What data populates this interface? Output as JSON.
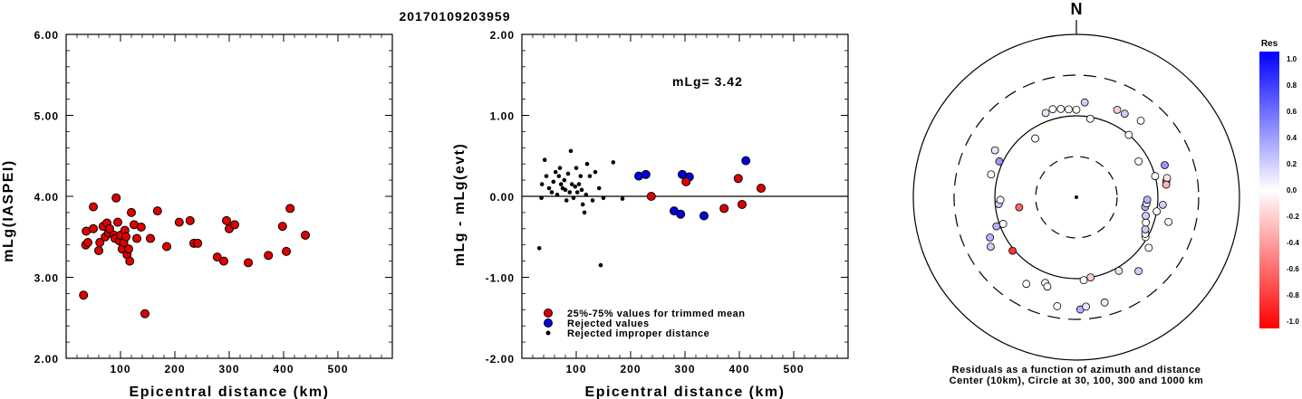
{
  "title": "20170109203959",
  "chart_data": [
    {
      "type": "scatter",
      "name": "magnitude-vs-distance",
      "xlabel": "Epicentral distance (km)",
      "ylabel": "mLg(IASPEI)",
      "xlim": [
        0,
        600
      ],
      "ylim": [
        2.0,
        6.0
      ],
      "xticks": [
        "100",
        "200",
        "300",
        "400",
        "500"
      ],
      "yticks": [
        "2.00",
        "3.00",
        "4.00",
        "5.00",
        "6.00"
      ],
      "marker_color": "#e00000",
      "points": [
        [
          32,
          2.78
        ],
        [
          36,
          3.4
        ],
        [
          37,
          3.57
        ],
        [
          40,
          3.43
        ],
        [
          50,
          3.87
        ],
        [
          50,
          3.6
        ],
        [
          60,
          3.33
        ],
        [
          62,
          3.43
        ],
        [
          68,
          3.63
        ],
        [
          72,
          3.5
        ],
        [
          75,
          3.67
        ],
        [
          78,
          3.55
        ],
        [
          80,
          3.6
        ],
        [
          88,
          3.52
        ],
        [
          90,
          3.48
        ],
        [
          92,
          3.98
        ],
        [
          95,
          3.68
        ],
        [
          98,
          3.45
        ],
        [
          100,
          3.52
        ],
        [
          103,
          3.35
        ],
        [
          106,
          3.43
        ],
        [
          108,
          3.58
        ],
        [
          110,
          3.5
        ],
        [
          112,
          3.28
        ],
        [
          115,
          3.35
        ],
        [
          117,
          3.2
        ],
        [
          120,
          3.8
        ],
        [
          125,
          3.65
        ],
        [
          130,
          3.48
        ],
        [
          138,
          3.62
        ],
        [
          145,
          2.55
        ],
        [
          155,
          3.48
        ],
        [
          168,
          3.82
        ],
        [
          185,
          3.38
        ],
        [
          208,
          3.68
        ],
        [
          228,
          3.7
        ],
        [
          235,
          3.42
        ],
        [
          242,
          3.42
        ],
        [
          278,
          3.25
        ],
        [
          290,
          3.2
        ],
        [
          295,
          3.7
        ],
        [
          300,
          3.6
        ],
        [
          310,
          3.65
        ],
        [
          335,
          3.18
        ],
        [
          372,
          3.27
        ],
        [
          398,
          3.63
        ],
        [
          405,
          3.32
        ],
        [
          412,
          3.85
        ],
        [
          440,
          3.52
        ]
      ]
    },
    {
      "type": "scatter",
      "name": "residual-vs-distance",
      "xlabel": "Epicentral distance (km)",
      "ylabel": "mLg - mLg(evt)",
      "xlim": [
        0,
        600
      ],
      "ylim": [
        -2.0,
        2.0
      ],
      "xticks": [
        "100",
        "200",
        "300",
        "400",
        "500"
      ],
      "yticks": [
        "-2.00",
        "-1.00",
        "0.00",
        "1.00",
        "2.00"
      ],
      "annotation": "mLg= 3.42",
      "legend": [
        {
          "label": "25%-75% values for trimmed mean",
          "color": "#e00000"
        },
        {
          "label": "Rejected values",
          "color": "#0000e0"
        },
        {
          "label": "Rejected improper distance",
          "color": "#000000"
        }
      ],
      "used_points": [
        [
          238,
          0.0
        ],
        [
          302,
          0.18
        ],
        [
          372,
          -0.15
        ],
        [
          398,
          0.22
        ],
        [
          405,
          -0.1
        ],
        [
          440,
          0.1
        ]
      ],
      "rejected_points": [
        [
          215,
          0.25
        ],
        [
          228,
          0.27
        ],
        [
          280,
          -0.18
        ],
        [
          292,
          -0.22
        ],
        [
          295,
          0.27
        ],
        [
          308,
          0.24
        ],
        [
          335,
          -0.24
        ],
        [
          412,
          0.44
        ]
      ],
      "improper_points": [
        [
          32,
          -0.64
        ],
        [
          36,
          -0.02
        ],
        [
          37,
          0.15
        ],
        [
          42,
          0.45
        ],
        [
          45,
          0.25
        ],
        [
          50,
          0.1
        ],
        [
          55,
          0.05
        ],
        [
          58,
          0.18
        ],
        [
          62,
          0.3
        ],
        [
          65,
          0.02
        ],
        [
          68,
          0.25
        ],
        [
          70,
          0.35
        ],
        [
          72,
          0.15
        ],
        [
          75,
          0.1
        ],
        [
          78,
          0.2
        ],
        [
          80,
          0.08
        ],
        [
          82,
          -0.05
        ],
        [
          85,
          0.28
        ],
        [
          88,
          0.05
        ],
        [
          90,
          0.56
        ],
        [
          92,
          0.15
        ],
        [
          95,
          -0.02
        ],
        [
          98,
          0.12
        ],
        [
          100,
          0.35
        ],
        [
          102,
          0.05
        ],
        [
          105,
          0.15
        ],
        [
          108,
          0.25
        ],
        [
          110,
          0.08
        ],
        [
          112,
          -0.1
        ],
        [
          115,
          -0.2
        ],
        [
          118,
          0.02
        ],
        [
          120,
          0.4
        ],
        [
          125,
          0.25
        ],
        [
          130,
          -0.05
        ],
        [
          135,
          0.3
        ],
        [
          142,
          0.1
        ],
        [
          145,
          -0.85
        ],
        [
          150,
          -0.02
        ],
        [
          168,
          0.42
        ],
        [
          185,
          -0.03
        ]
      ]
    },
    {
      "type": "polar",
      "name": "azimuth-residual-plot",
      "north_label": "N",
      "caption_line1": "Residuals as a function of azimuth and distance",
      "caption_line2": "Center (10km), Circle at 30, 100, 300 and 1000 km",
      "colorbar": {
        "title": "Res",
        "labels": [
          "1.0",
          "0.8",
          "0.6",
          "0.4",
          "0.2",
          "0.0",
          "-0.2",
          "-0.4",
          "-0.6",
          "-0.8",
          "-1.0"
        ],
        "max_color": "#0000ff",
        "zero_color": "#ffffff",
        "min_color": "#ff0000"
      },
      "stations": [
        {
          "az": 5,
          "dist": 145,
          "res": 0.2
        },
        {
          "az": -15,
          "dist": 130,
          "res": 0.0
        },
        {
          "az": -10,
          "dist": 125,
          "res": 0.0
        },
        {
          "az": -5,
          "dist": 120,
          "res": 0.0
        },
        {
          "az": 0,
          "dist": 118,
          "res": 0.0
        },
        {
          "az": 10,
          "dist": 95,
          "res": 0.0
        },
        {
          "az": -35,
          "dist": 75,
          "res": 0.0
        },
        {
          "az": 40,
          "dist": 100,
          "res": 0.0
        },
        {
          "az": 60,
          "dist": 75,
          "res": 0.0
        },
        {
          "az": -60,
          "dist": 140,
          "res": 0.1
        },
        {
          "az": -65,
          "dist": 110,
          "res": 0.4
        },
        {
          "az": -75,
          "dist": 120,
          "res": 0.0
        },
        {
          "az": -95,
          "dist": 90,
          "res": 0.2
        },
        {
          "az": -110,
          "dist": 110,
          "res": 0.3
        },
        {
          "az": -115,
          "dist": 145,
          "res": 0.3
        },
        {
          "az": -120,
          "dist": 160,
          "res": 0.2
        },
        {
          "az": -100,
          "dist": 50,
          "res": -0.6
        },
        {
          "az": -130,
          "dist": 105,
          "res": -0.8
        },
        {
          "az": -160,
          "dist": 130,
          "res": 0.0
        },
        {
          "az": -162,
          "dist": 140,
          "res": 0.0
        },
        {
          "az": -170,
          "dist": 220,
          "res": 0.0
        },
        {
          "az": 175,
          "dist": 105,
          "res": 0.0
        },
        {
          "az": 170,
          "dist": 100,
          "res": -0.2
        },
        {
          "az": 178,
          "dist": 230,
          "res": 0.3
        },
        {
          "az": 175,
          "dist": 215,
          "res": 0.1
        },
        {
          "az": 165,
          "dist": 210,
          "res": -0.1
        },
        {
          "az": 150,
          "dist": 110,
          "res": 0.1
        },
        {
          "az": 140,
          "dist": 150,
          "res": 0.2
        },
        {
          "az": 125,
          "dist": 120,
          "res": 0.0
        },
        {
          "az": 120,
          "dist": 95,
          "res": 0.0
        },
        {
          "az": 118,
          "dist": 90,
          "res": 0.0
        },
        {
          "az": 115,
          "dist": 85,
          "res": 0.2
        },
        {
          "az": 110,
          "dist": 80,
          "res": 0.0
        },
        {
          "az": 105,
          "dist": 75,
          "res": 0.2
        },
        {
          "az": 98,
          "dist": 70,
          "res": 0.3
        },
        {
          "az": 95,
          "dist": 72,
          "res": 0.1
        },
        {
          "az": 92,
          "dist": 73,
          "res": 0.3
        },
        {
          "az": 100,
          "dist": 100,
          "res": 0.0
        },
        {
          "az": 95,
          "dist": 115,
          "res": 0.2
        },
        {
          "az": 105,
          "dist": 145,
          "res": 0.0
        },
        {
          "az": 80,
          "dist": 130,
          "res": -0.5
        },
        {
          "az": 78,
          "dist": 135,
          "res": -0.1
        },
        {
          "az": 82,
          "dist": 128,
          "res": -0.3
        },
        {
          "az": 75,
          "dist": 100,
          "res": 0.0
        },
        {
          "az": 70,
          "dist": 140,
          "res": 0.4
        },
        {
          "az": 40,
          "dist": 165,
          "res": 0.0
        },
        {
          "az": 30,
          "dist": 150,
          "res": 0.2
        },
        {
          "az": 25,
          "dist": 150,
          "res": -0.2
        },
        {
          "az": -110,
          "dist": 90,
          "res": 0.0
        },
        {
          "az": -92,
          "dist": 85,
          "res": 0.0
        },
        {
          "az": -150,
          "dist": 165,
          "res": 0.0
        },
        {
          "az": -20,
          "dist": 125,
          "res": 0.1
        }
      ]
    }
  ]
}
